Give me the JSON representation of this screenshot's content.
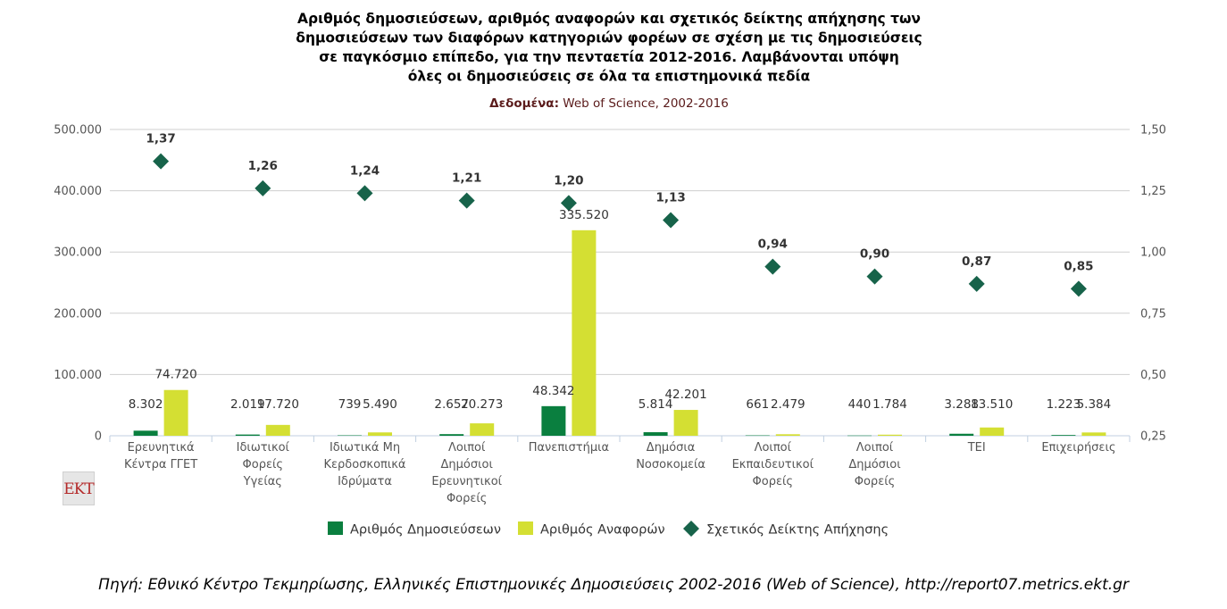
{
  "chart_data": {
    "type": "bar",
    "title_lines": [
      "Αριθμός δημοσιεύσεων, αριθμός αναφορών και σχετικός δείκτης απήχησης των",
      "δημοσιεύσεων των διαφόρων κατηγοριών φορέων σε σχέση με τις δημοσιεύσεις",
      "σε παγκόσμιο επίπεδο, για την πενταετία 2012-2016. Λαμβάνονται υπόψη",
      "όλες οι δημοσιεύσεις σε όλα τα επιστημονικά πεδία"
    ],
    "subtitle_label": "Δεδομένα:",
    "subtitle_value": " Web of Science, 2002-2016",
    "categories": [
      [
        "Ερευνητικά",
        "Κέντρα ΓΓΕΤ"
      ],
      [
        "Ιδιωτικοί",
        "Φορείς",
        "Υγείας"
      ],
      [
        "Ιδιωτικά Μη",
        "Κερδοσκοπικά",
        "Ιδρύματα"
      ],
      [
        "Λοιποί",
        "Δημόσιοι",
        "Ερευνητικοί",
        "Φορείς"
      ],
      [
        "Πανεπιστήμια"
      ],
      [
        "Δημόσια",
        "Νοσοκομεία"
      ],
      [
        "Λοιποί",
        "Εκπαιδευτικοί",
        "Φορείς"
      ],
      [
        "Λοιποί",
        "Δημόσιοι",
        "Φορείς"
      ],
      [
        "ΤΕΙ"
      ],
      [
        "Επιχειρήσεις"
      ]
    ],
    "series": [
      {
        "name": "Αριθμός Δημοσιεύσεων",
        "color": "#0a7f3f",
        "axis": "left",
        "values": [
          8302,
          2019,
          739,
          2657,
          48342,
          5814,
          661,
          440,
          3288,
          1223
        ],
        "labels": [
          "8.302",
          "2.019",
          "739",
          "2.657",
          "48.342",
          "5.814",
          "661",
          "440",
          "3.288",
          "1.223"
        ]
      },
      {
        "name": "Αριθμός Αναφορών",
        "color": "#d4df33",
        "axis": "left",
        "values": [
          74720,
          17720,
          5490,
          20273,
          335520,
          42201,
          2479,
          1784,
          13510,
          5384
        ],
        "labels": [
          "74.720",
          "17.720",
          "5.490",
          "20.273",
          "335.520",
          "42.201",
          "2.479",
          "1.784",
          "13.510",
          "5.384"
        ]
      },
      {
        "name": "Σχετικός Δείκτης Απήχησης",
        "color": "#17634a",
        "axis": "right",
        "marker": "diamond",
        "values": [
          1.37,
          1.26,
          1.24,
          1.21,
          1.2,
          1.13,
          0.94,
          0.9,
          0.87,
          0.85
        ],
        "labels": [
          "1,37",
          "1,26",
          "1,24",
          "1,21",
          "1,20",
          "1,13",
          "0,94",
          "0,90",
          "0,87",
          "0,85"
        ]
      }
    ],
    "y_left": {
      "range": [
        0,
        500000
      ],
      "ticks": [
        0,
        100000,
        200000,
        300000,
        400000,
        500000
      ],
      "tick_labels": [
        "0",
        "100.000",
        "200.000",
        "300.000",
        "400.000",
        "500.000"
      ]
    },
    "y_right": {
      "range": [
        0.25,
        1.5
      ],
      "ticks": [
        0.25,
        0.5,
        0.75,
        1.0,
        1.25,
        1.5
      ],
      "tick_labels": [
        "0,25",
        "0,50",
        "0,75",
        "1,00",
        "1,25",
        "1,50"
      ]
    },
    "grid": true,
    "legend_position": "bottom"
  },
  "logo": {
    "text": "EKT"
  },
  "source": "Πηγή: Εθνικό Κέντρο Τεκμηρίωσης, Ελληνικές Επιστημονικές Δημοσιεύσεις 2002-2016 (Web of Science), http://report07.metrics.ekt.gr"
}
